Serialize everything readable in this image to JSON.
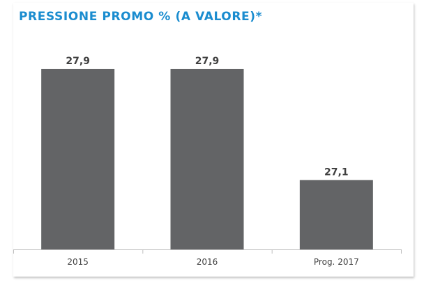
{
  "colors": {
    "title": "#1a8ccf",
    "bar": "#636466",
    "value_label": "#404040",
    "tick_label": "#404040",
    "axis": "#bfbfbf"
  },
  "chart_data": {
    "type": "bar",
    "title": "PRESSIONE PROMO % (A VALORE)*",
    "xlabel": "",
    "ylabel": "",
    "categories": [
      "2015",
      "2016",
      "Prog. 2017"
    ],
    "values": [
      27.9,
      27.9,
      27.1
    ],
    "value_labels": [
      "27,9",
      "27,9",
      "27,1"
    ],
    "ylim": [
      26.6,
      27.95
    ],
    "grid": false,
    "legend": "none"
  }
}
